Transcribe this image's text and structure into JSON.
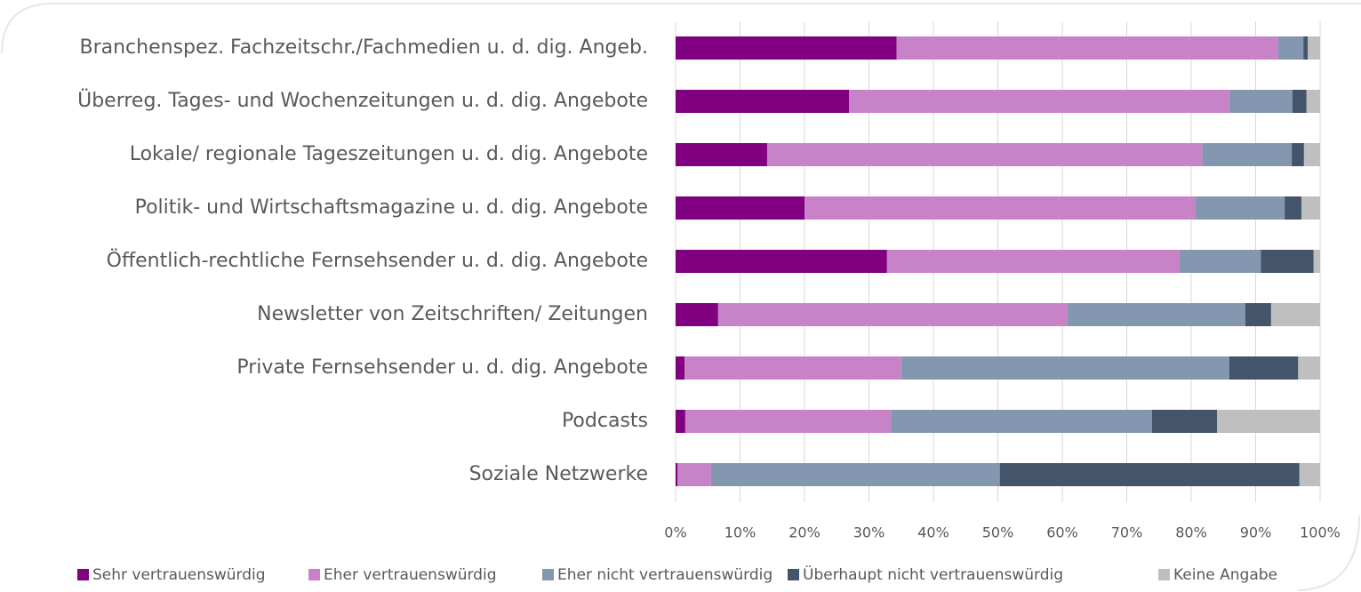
{
  "chart_data": {
    "type": "bar",
    "orientation": "horizontal",
    "stacked": true,
    "grid": true,
    "legend": "bottom",
    "categories": [
      "Branchenspez. Fachzeitschr./Fachmedien u. d. dig. Angeb.",
      "Überreg. Tages- und Wochenzeitungen u. d. dig. Angebote",
      "Lokale/ regionale Tageszeitungen u. d. dig. Angebote",
      "Politik- und Wirtschaftsmagazine u. d. dig. Angebote",
      "Öffentlich-rechtliche Fernsehsender u. d. dig. Angebote",
      "Newsletter von Zeitschriften/ Zeitungen",
      "Private Fernsehsender u. d. dig. Angebote",
      "Podcasts",
      "Soziale Netzwerke"
    ],
    "series": [
      {
        "name": "Sehr vertrauenswürdig",
        "color": "#800080",
        "values": [
          34.3,
          26.9,
          14.2,
          20.0,
          32.8,
          6.6,
          1.4,
          1.5,
          0.3
        ]
      },
      {
        "name": "Eher vertrauenswürdig",
        "color": "#c882c8",
        "values": [
          59.2,
          59.0,
          67.5,
          60.6,
          45.4,
          54.2,
          33.6,
          31.9,
          5.2
        ]
      },
      {
        "name": "Eher nicht vertrauenswürdig",
        "color": "#8497b0",
        "values": [
          3.9,
          9.8,
          13.9,
          13.9,
          12.6,
          27.6,
          50.9,
          40.5,
          44.8
        ]
      },
      {
        "name": "Überhaupt nicht vertrauenswürdig",
        "color": "#44546a",
        "values": [
          0.7,
          2.2,
          1.9,
          2.6,
          8.2,
          4.0,
          10.7,
          10.1,
          46.5
        ]
      },
      {
        "name": "Keine Angabe",
        "color": "#bfbfbf",
        "values": [
          1.9,
          2.1,
          2.5,
          2.9,
          1.0,
          7.6,
          3.4,
          16.0,
          3.2
        ]
      }
    ],
    "xlim": [
      0,
      100
    ],
    "xticks": [
      {
        "value": 0,
        "label": "0%"
      },
      {
        "value": 10,
        "label": "10%"
      },
      {
        "value": 20,
        "label": "20%"
      },
      {
        "value": 30,
        "label": "30%"
      },
      {
        "value": 40,
        "label": "40%"
      },
      {
        "value": 50,
        "label": "50%"
      },
      {
        "value": 60,
        "label": "60%"
      },
      {
        "value": 70,
        "label": "70%"
      },
      {
        "value": 80,
        "label": "80%"
      },
      {
        "value": 90,
        "label": "90%"
      },
      {
        "value": 100,
        "label": "100%"
      }
    ]
  }
}
